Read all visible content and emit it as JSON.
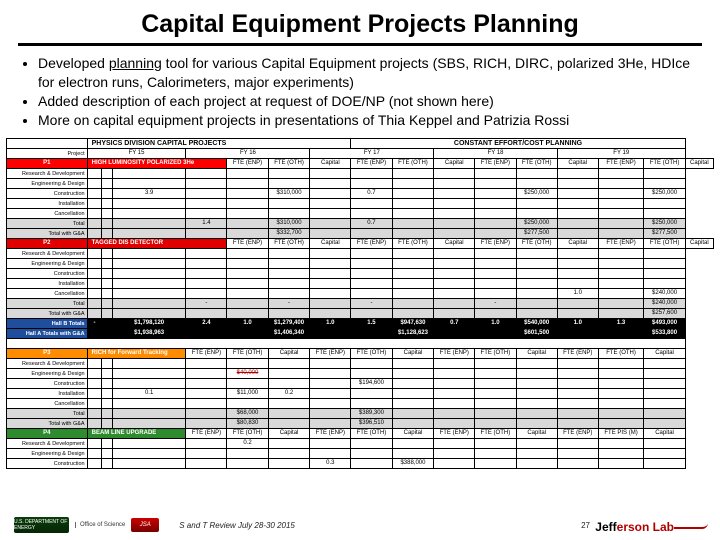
{
  "title": "Capital Equipment Projects Planning",
  "bullets": [
    {
      "pre": "Developed ",
      "u": "planning",
      "post": " tool for various Capital Equipment projects (SBS, RICH, DIRC, polarized 3He, HDIce for electron runs, Calorimeters, major experiments)"
    },
    {
      "pre": "Added description of each project at request of DOE/NP (not shown here)",
      "u": "",
      "post": ""
    },
    {
      "pre": "More on capital equipment projects in presentations of Thia Keppel and Patrizia Rossi",
      "u": "",
      "post": ""
    }
  ],
  "topLeft": "PHYSICS DIVISION CAPITAL PROJECTS",
  "topRight": "CONSTANT EFFORT/COST PLANNING",
  "yearCols": [
    "FY 15",
    "FY 16",
    "FY 17",
    "FY 18",
    "FY 19"
  ],
  "groupCols": [
    "FTE (ENP)",
    "FTE (OTH)",
    "Capital",
    "FTE (ENP)",
    "FTE (OTH)",
    "Capital",
    "FTE (ENP)",
    "FTE (OTH)",
    "Capital",
    "FTE (ENP)",
    "FTE (OTH)",
    "Capital",
    "FTE (ENP)",
    "FTE (OTH)",
    "Capital"
  ],
  "rowLabels": {
    "rd": "Research & Development",
    "ed": "Engineering & Design",
    "co": "Construction",
    "in": "Installation",
    "ca": "Cancellation",
    "tot": "Total",
    "tga": "Total with G&A",
    "hab": "Hall B   Totals",
    "hat": "Hall A Totals with G&A",
    "haa": "Hall A Totals"
  },
  "proj": "Project",
  "p1": {
    "code": "P1",
    "title": "HIGH LUMINOSITY POLARIZED 3He"
  },
  "p2": {
    "code": "P2",
    "title": "TAGGED DIS DETECTOR"
  },
  "p3": {
    "title": "RICH for Forward Tracking"
  },
  "p4": {
    "title": "BEAM LINE UPGRADE"
  },
  "vals": {
    "p1_co": [
      "",
      "",
      "3.9",
      "",
      "",
      "$310,000",
      "",
      "0.7",
      "",
      "",
      "",
      "$250,000",
      "",
      "",
      "",
      "",
      "",
      "$250,000"
    ],
    "p1_tot": [
      "",
      "",
      "",
      "",
      "",
      "",
      "",
      "1.4",
      "",
      "$310,000",
      "",
      "0.7",
      "",
      "",
      "$250,000",
      "",
      "",
      "",
      "",
      "",
      "$250,000"
    ],
    "p1_tga": [
      "",
      "",
      "",
      "",
      "",
      "",
      "",
      "",
      "",
      "$332,700",
      "",
      "",
      "",
      "",
      "$277,500",
      "",
      "",
      "",
      "",
      "",
      "$277,500"
    ],
    "p2_ca": [
      "",
      "",
      "",
      "",
      "",
      "",
      "",
      "",
      "",
      "",
      "",
      "",
      "",
      "",
      "",
      "",
      "",
      "",
      "",
      "",
      "1.0",
      "",
      "",
      "$240,000"
    ],
    "p2_tot": [
      "",
      "",
      "",
      "",
      "",
      "",
      "-",
      "",
      "-",
      "",
      "-",
      "",
      "-",
      "",
      "-",
      "",
      "",
      "",
      "",
      "",
      "",
      "",
      "",
      "$240,000"
    ],
    "p2_tga": [
      "",
      "",
      "",
      "",
      "",
      "",
      "",
      "",
      "",
      "",
      "",
      "",
      "",
      "",
      "",
      "",
      "",
      "",
      "",
      "",
      "",
      "",
      "",
      "$257,600"
    ],
    "hab": [
      "",
      "-",
      "",
      "$1,798,120",
      "2.4",
      "1.0",
      "$1,279,400",
      "1.0",
      "1.5",
      "$947,630",
      "0.7",
      "1.0",
      "$540,000",
      "1.0",
      "1.3",
      "$493,000"
    ],
    "hat": [
      "",
      "",
      "",
      "$1,938,963",
      "",
      "",
      "$1,406,340",
      "",
      "",
      "$1,128,623",
      "",
      "",
      "$601,500",
      "",
      "",
      "$533,800"
    ],
    "p3_co": [
      "",
      "",
      "",
      "",
      "",
      "",
      "",
      "",
      "",
      "$194,600",
      "",
      "",
      "",
      "",
      "",
      "",
      "",
      "",
      "",
      "",
      ""
    ],
    "p3_in": [
      "",
      "",
      "",
      "",
      "0.1",
      "",
      "",
      "",
      "$11,000",
      "0.2",
      "",
      "",
      "",
      "",
      "",
      "",
      "",
      "",
      "",
      "",
      ""
    ],
    "p3_tot": [
      "",
      "",
      "",
      "",
      "",
      "",
      "$68,000",
      "",
      "",
      "$389,300",
      "",
      "",
      "",
      "",
      "",
      "",
      "",
      "",
      "",
      "",
      ""
    ],
    "p3_tga": [
      "",
      "",
      "",
      "",
      "",
      "",
      "$80,830",
      "",
      "",
      "$396,510",
      "",
      "",
      "",
      "",
      "",
      "",
      "",
      "",
      "",
      "",
      ""
    ],
    "p4_rd": [
      "",
      "",
      "",
      "",
      "",
      "",
      "",
      "0.2",
      "",
      "",
      "",
      "",
      "",
      "",
      "",
      "",
      "",
      "",
      "",
      "",
      ""
    ],
    "p4_co": [
      "",
      "",
      "",
      "",
      "",
      "",
      "",
      "",
      "",
      "",
      "",
      "0.3",
      "",
      "",
      "$388,000",
      "",
      "",
      "",
      "",
      "",
      ""
    ]
  },
  "struck": "$40,000",
  "footer": {
    "doe": "U.S. DEPARTMENT OF ENERGY",
    "sci": "Office of Science",
    "jsa": "JSA",
    "mid": "S and T Review July 28-30 2015",
    "pg": "27",
    "jlab": "Jefferson Lab"
  }
}
